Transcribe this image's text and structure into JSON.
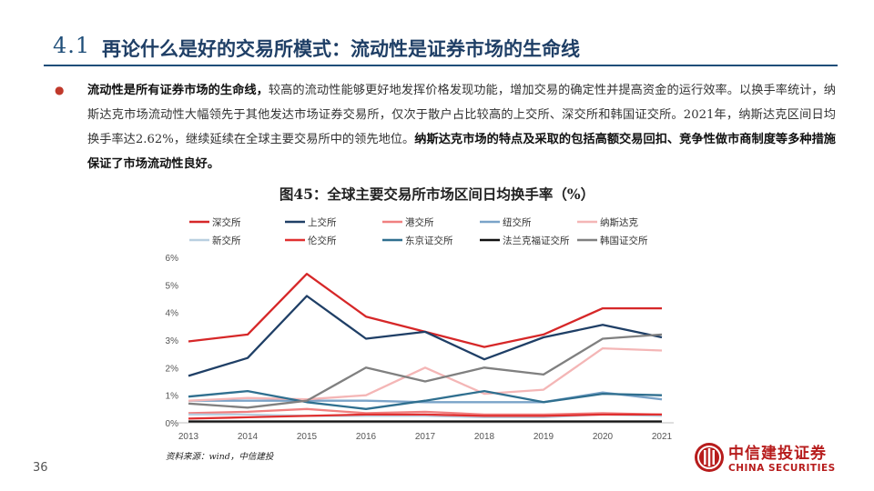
{
  "header": {
    "number": "4.1",
    "title": "再论什么是好的交易所模式：流动性是证券市场的生命线"
  },
  "bullet": {
    "bold_lead": "流动性是所有证券市场的生命线，",
    "text": "较高的流动性能够更好地发挥价格发现功能，增加交易的确定性并提高资金的运行效率。以换手率统计，纳斯达克市场流动性大幅领先于其他发达市场证券交易所，仅次于散户占比较高的上交所、深交所和韩国证交所。2021年，纳斯达克区间日均换手率达2.62%，继续延续在全球主要交易所中的领先地位。",
    "bold_tail": "纳斯达克市场的特点及采取的包括高额交易回扣、竞争性做市商制度等多种措施保证了市场流动性良好。"
  },
  "chart_data": {
    "type": "line",
    "title": "图45：全球主要交易所市场区间日均换手率（%）",
    "x": [
      "2013",
      "2014",
      "2015",
      "2016",
      "2017",
      "2018",
      "2019",
      "2020",
      "2021"
    ],
    "ylim": [
      0,
      6
    ],
    "yticks": [
      "0%",
      "1%",
      "2%",
      "3%",
      "4%",
      "5%",
      "6%"
    ],
    "grid": false,
    "legend_position": "top",
    "series": [
      {
        "name": "深交所",
        "color": "#d62728",
        "values": [
          2.95,
          3.2,
          5.4,
          3.85,
          3.3,
          2.75,
          3.2,
          4.15,
          4.15
        ]
      },
      {
        "name": "上交所",
        "color": "#1f3f66",
        "values": [
          1.7,
          2.35,
          4.6,
          3.05,
          3.3,
          2.3,
          3.1,
          3.55,
          3.1
        ]
      },
      {
        "name": "港交所",
        "color": "#f08080",
        "values": [
          0.35,
          0.4,
          0.5,
          0.35,
          0.4,
          0.3,
          0.3,
          0.35,
          0.3
        ]
      },
      {
        "name": "纽交所",
        "color": "#7aa3c8",
        "values": [
          0.8,
          0.8,
          0.8,
          0.8,
          0.75,
          0.75,
          0.75,
          1.1,
          0.85
        ]
      },
      {
        "name": "纳斯达克",
        "color": "#f4b6b6",
        "values": [
          0.8,
          0.9,
          0.85,
          1.0,
          2.0,
          1.05,
          1.2,
          2.7,
          2.62
        ]
      },
      {
        "name": "新交所",
        "color": "#b9cfe0",
        "values": [
          0.3,
          0.3,
          0.25,
          0.25,
          0.25,
          0.2,
          0.2,
          0.3,
          0.25
        ]
      },
      {
        "name": "伦交所",
        "color": "#e03030",
        "values": [
          0.15,
          0.2,
          0.25,
          0.3,
          0.3,
          0.25,
          0.25,
          0.3,
          0.3
        ]
      },
      {
        "name": "东京证交所",
        "color": "#2f6f8f",
        "values": [
          0.95,
          1.15,
          0.75,
          0.5,
          0.8,
          1.15,
          0.75,
          1.05,
          1.0
        ]
      },
      {
        "name": "法兰克福证交所",
        "color": "#111111",
        "values": [
          0.05,
          0.05,
          0.05,
          0.05,
          0.05,
          0.05,
          0.05,
          0.05,
          0.05
        ]
      },
      {
        "name": "韩国证交所",
        "color": "#808080",
        "values": [
          0.7,
          0.55,
          0.8,
          2.0,
          1.5,
          2.0,
          1.75,
          3.05,
          3.2
        ]
      }
    ]
  },
  "source": "资料来源：wind，中信建投",
  "page_number": "36",
  "logo": {
    "cn": "中信建投证券",
    "en": "CHINA SECURITIES"
  }
}
